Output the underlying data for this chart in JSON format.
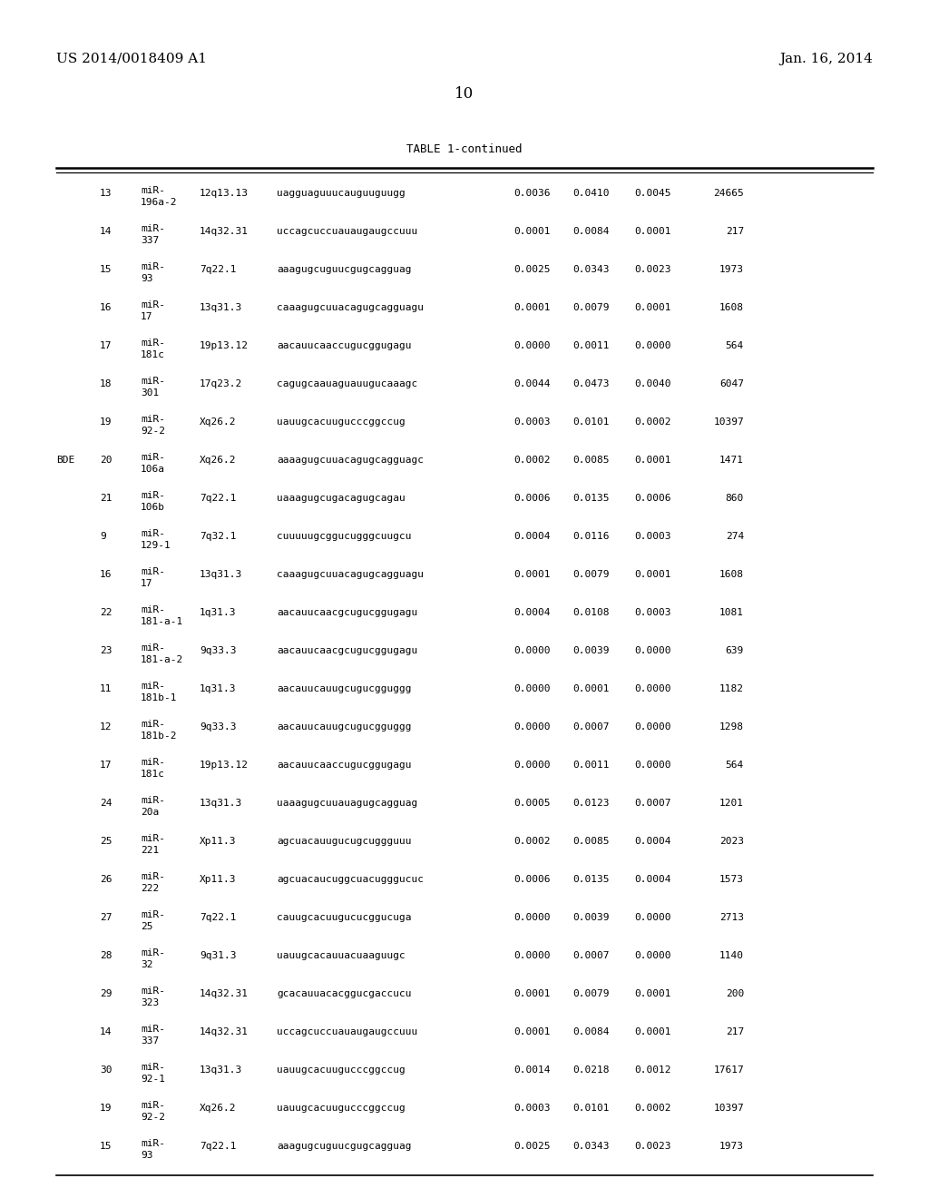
{
  "header_left": "US 2014/0018409 A1",
  "header_right": "Jan. 16, 2014",
  "page_number": "10",
  "table_title": "TABLE 1-continued",
  "background_color": "#ffffff",
  "text_color": "#000000",
  "rows": [
    {
      "c0": "13",
      "c1a": "miR-",
      "c1b": "196a-2",
      "c2": "12q13.13",
      "c3": "uagguaguuucauguuguugg",
      "c4": "0.0036",
      "c5": "0.0410",
      "c6": "0.0045",
      "c7": "24665",
      "prefix": ""
    },
    {
      "c0": "14",
      "c1a": "miR-",
      "c1b": "337",
      "c2": "14q32.31",
      "c3": "uccagcuccuauaugaugccuuu",
      "c4": "0.0001",
      "c5": "0.0084",
      "c6": "0.0001",
      "c7": "217",
      "prefix": ""
    },
    {
      "c0": "15",
      "c1a": "miR-",
      "c1b": "93",
      "c2": "7q22.1",
      "c3": "aaagugcuguucgugcagguag",
      "c4": "0.0025",
      "c5": "0.0343",
      "c6": "0.0023",
      "c7": "1973",
      "prefix": ""
    },
    {
      "c0": "16",
      "c1a": "miR-",
      "c1b": "17",
      "c2": "13q31.3",
      "c3": "caaagugcuuacagugcagguagu",
      "c4": "0.0001",
      "c5": "0.0079",
      "c6": "0.0001",
      "c7": "1608",
      "prefix": ""
    },
    {
      "c0": "17",
      "c1a": "miR-",
      "c1b": "181c",
      "c2": "19p13.12",
      "c3": "aacauucaaccugucggugagu",
      "c4": "0.0000",
      "c5": "0.0011",
      "c6": "0.0000",
      "c7": "564",
      "prefix": ""
    },
    {
      "c0": "18",
      "c1a": "miR-",
      "c1b": "301",
      "c2": "17q23.2",
      "c3": "cagugcaauaguauugucaaagc",
      "c4": "0.0044",
      "c5": "0.0473",
      "c6": "0.0040",
      "c7": "6047",
      "prefix": ""
    },
    {
      "c0": "19",
      "c1a": "miR-",
      "c1b": "92-2",
      "c2": "Xq26.2",
      "c3": "uauugcacuugucccggccug",
      "c4": "0.0003",
      "c5": "0.0101",
      "c6": "0.0002",
      "c7": "10397",
      "prefix": ""
    },
    {
      "c0": "20",
      "c1a": "miR-",
      "c1b": "106a",
      "c2": "Xq26.2",
      "c3": "aaaagugcuuacagugcagguagc",
      "c4": "0.0002",
      "c5": "0.0085",
      "c6": "0.0001",
      "c7": "1471",
      "prefix": "BDE"
    },
    {
      "c0": "21",
      "c1a": "miR-",
      "c1b": "106b",
      "c2": "7q22.1",
      "c3": "uaaagugcugacagugcagau",
      "c4": "0.0006",
      "c5": "0.0135",
      "c6": "0.0006",
      "c7": "860",
      "prefix": ""
    },
    {
      "c0": "9",
      "c1a": "miR-",
      "c1b": "129-1",
      "c2": "7q32.1",
      "c3": "cuuuuugcggucugggcuugcu",
      "c4": "0.0004",
      "c5": "0.0116",
      "c6": "0.0003",
      "c7": "274",
      "prefix": ""
    },
    {
      "c0": "16",
      "c1a": "miR-",
      "c1b": "17",
      "c2": "13q31.3",
      "c3": "caaagugcuuacagugcagguagu",
      "c4": "0.0001",
      "c5": "0.0079",
      "c6": "0.0001",
      "c7": "1608",
      "prefix": ""
    },
    {
      "c0": "22",
      "c1a": "miR-",
      "c1b": "181-a-1",
      "c2": "1q31.3",
      "c3": "aacauucaacgcugucggugagu",
      "c4": "0.0004",
      "c5": "0.0108",
      "c6": "0.0003",
      "c7": "1081",
      "prefix": ""
    },
    {
      "c0": "23",
      "c1a": "miR-",
      "c1b": "181-a-2",
      "c2": "9q33.3",
      "c3": "aacauucaacgcugucggugagu",
      "c4": "0.0000",
      "c5": "0.0039",
      "c6": "0.0000",
      "c7": "639",
      "prefix": ""
    },
    {
      "c0": "11",
      "c1a": "miR-",
      "c1b": "181b-1",
      "c2": "1q31.3",
      "c3": "aacauucauugcugucgguggg",
      "c4": "0.0000",
      "c5": "0.0001",
      "c6": "0.0000",
      "c7": "1182",
      "prefix": ""
    },
    {
      "c0": "12",
      "c1a": "miR-",
      "c1b": "181b-2",
      "c2": "9q33.3",
      "c3": "aacauucauugcugucgguggg",
      "c4": "0.0000",
      "c5": "0.0007",
      "c6": "0.0000",
      "c7": "1298",
      "prefix": ""
    },
    {
      "c0": "17",
      "c1a": "miR-",
      "c1b": "181c",
      "c2": "19p13.12",
      "c3": "aacauucaaccugucggugagu",
      "c4": "0.0000",
      "c5": "0.0011",
      "c6": "0.0000",
      "c7": "564",
      "prefix": ""
    },
    {
      "c0": "24",
      "c1a": "miR-",
      "c1b": "20a",
      "c2": "13q31.3",
      "c3": "uaaagugcuuauagugcagguag",
      "c4": "0.0005",
      "c5": "0.0123",
      "c6": "0.0007",
      "c7": "1201",
      "prefix": ""
    },
    {
      "c0": "25",
      "c1a": "miR-",
      "c1b": "221",
      "c2": "Xp11.3",
      "c3": "agcuacauugucugcuggguuu",
      "c4": "0.0002",
      "c5": "0.0085",
      "c6": "0.0004",
      "c7": "2023",
      "prefix": ""
    },
    {
      "c0": "26",
      "c1a": "miR-",
      "c1b": "222",
      "c2": "Xp11.3",
      "c3": "agcuacaucuggcuacugggucuc",
      "c4": "0.0006",
      "c5": "0.0135",
      "c6": "0.0004",
      "c7": "1573",
      "prefix": ""
    },
    {
      "c0": "27",
      "c1a": "miR-",
      "c1b": "25",
      "c2": "7q22.1",
      "c3": "cauugcacuugucucggucuga",
      "c4": "0.0000",
      "c5": "0.0039",
      "c6": "0.0000",
      "c7": "2713",
      "prefix": ""
    },
    {
      "c0": "28",
      "c1a": "miR-",
      "c1b": "32",
      "c2": "9q31.3",
      "c3": "uauugcacauuacuaaguugc",
      "c4": "0.0000",
      "c5": "0.0007",
      "c6": "0.0000",
      "c7": "1140",
      "prefix": ""
    },
    {
      "c0": "29",
      "c1a": "miR-",
      "c1b": "323",
      "c2": "14q32.31",
      "c3": "gcacauuacacggucgaccucu",
      "c4": "0.0001",
      "c5": "0.0079",
      "c6": "0.0001",
      "c7": "200",
      "prefix": ""
    },
    {
      "c0": "14",
      "c1a": "miR-",
      "c1b": "337",
      "c2": "14q32.31",
      "c3": "uccagcuccuauaugaugccuuu",
      "c4": "0.0001",
      "c5": "0.0084",
      "c6": "0.0001",
      "c7": "217",
      "prefix": ""
    },
    {
      "c0": "30",
      "c1a": "miR-",
      "c1b": "92-1",
      "c2": "13q31.3",
      "c3": "uauugcacuugucccggccug",
      "c4": "0.0014",
      "c5": "0.0218",
      "c6": "0.0012",
      "c7": "17617",
      "prefix": ""
    },
    {
      "c0": "19",
      "c1a": "miR-",
      "c1b": "92-2",
      "c2": "Xq26.2",
      "c3": "uauugcacuugucccggccug",
      "c4": "0.0003",
      "c5": "0.0101",
      "c6": "0.0002",
      "c7": "10397",
      "prefix": ""
    },
    {
      "c0": "15",
      "c1a": "miR-",
      "c1b": "93",
      "c2": "7q22.1",
      "c3": "aaagugcuguucgugcagguag",
      "c4": "0.0025",
      "c5": "0.0343",
      "c6": "0.0023",
      "c7": "1973",
      "prefix": ""
    }
  ],
  "font_size_header": 11,
  "font_size_table": 8.0,
  "font_size_page": 12,
  "font_size_title": 9.0
}
